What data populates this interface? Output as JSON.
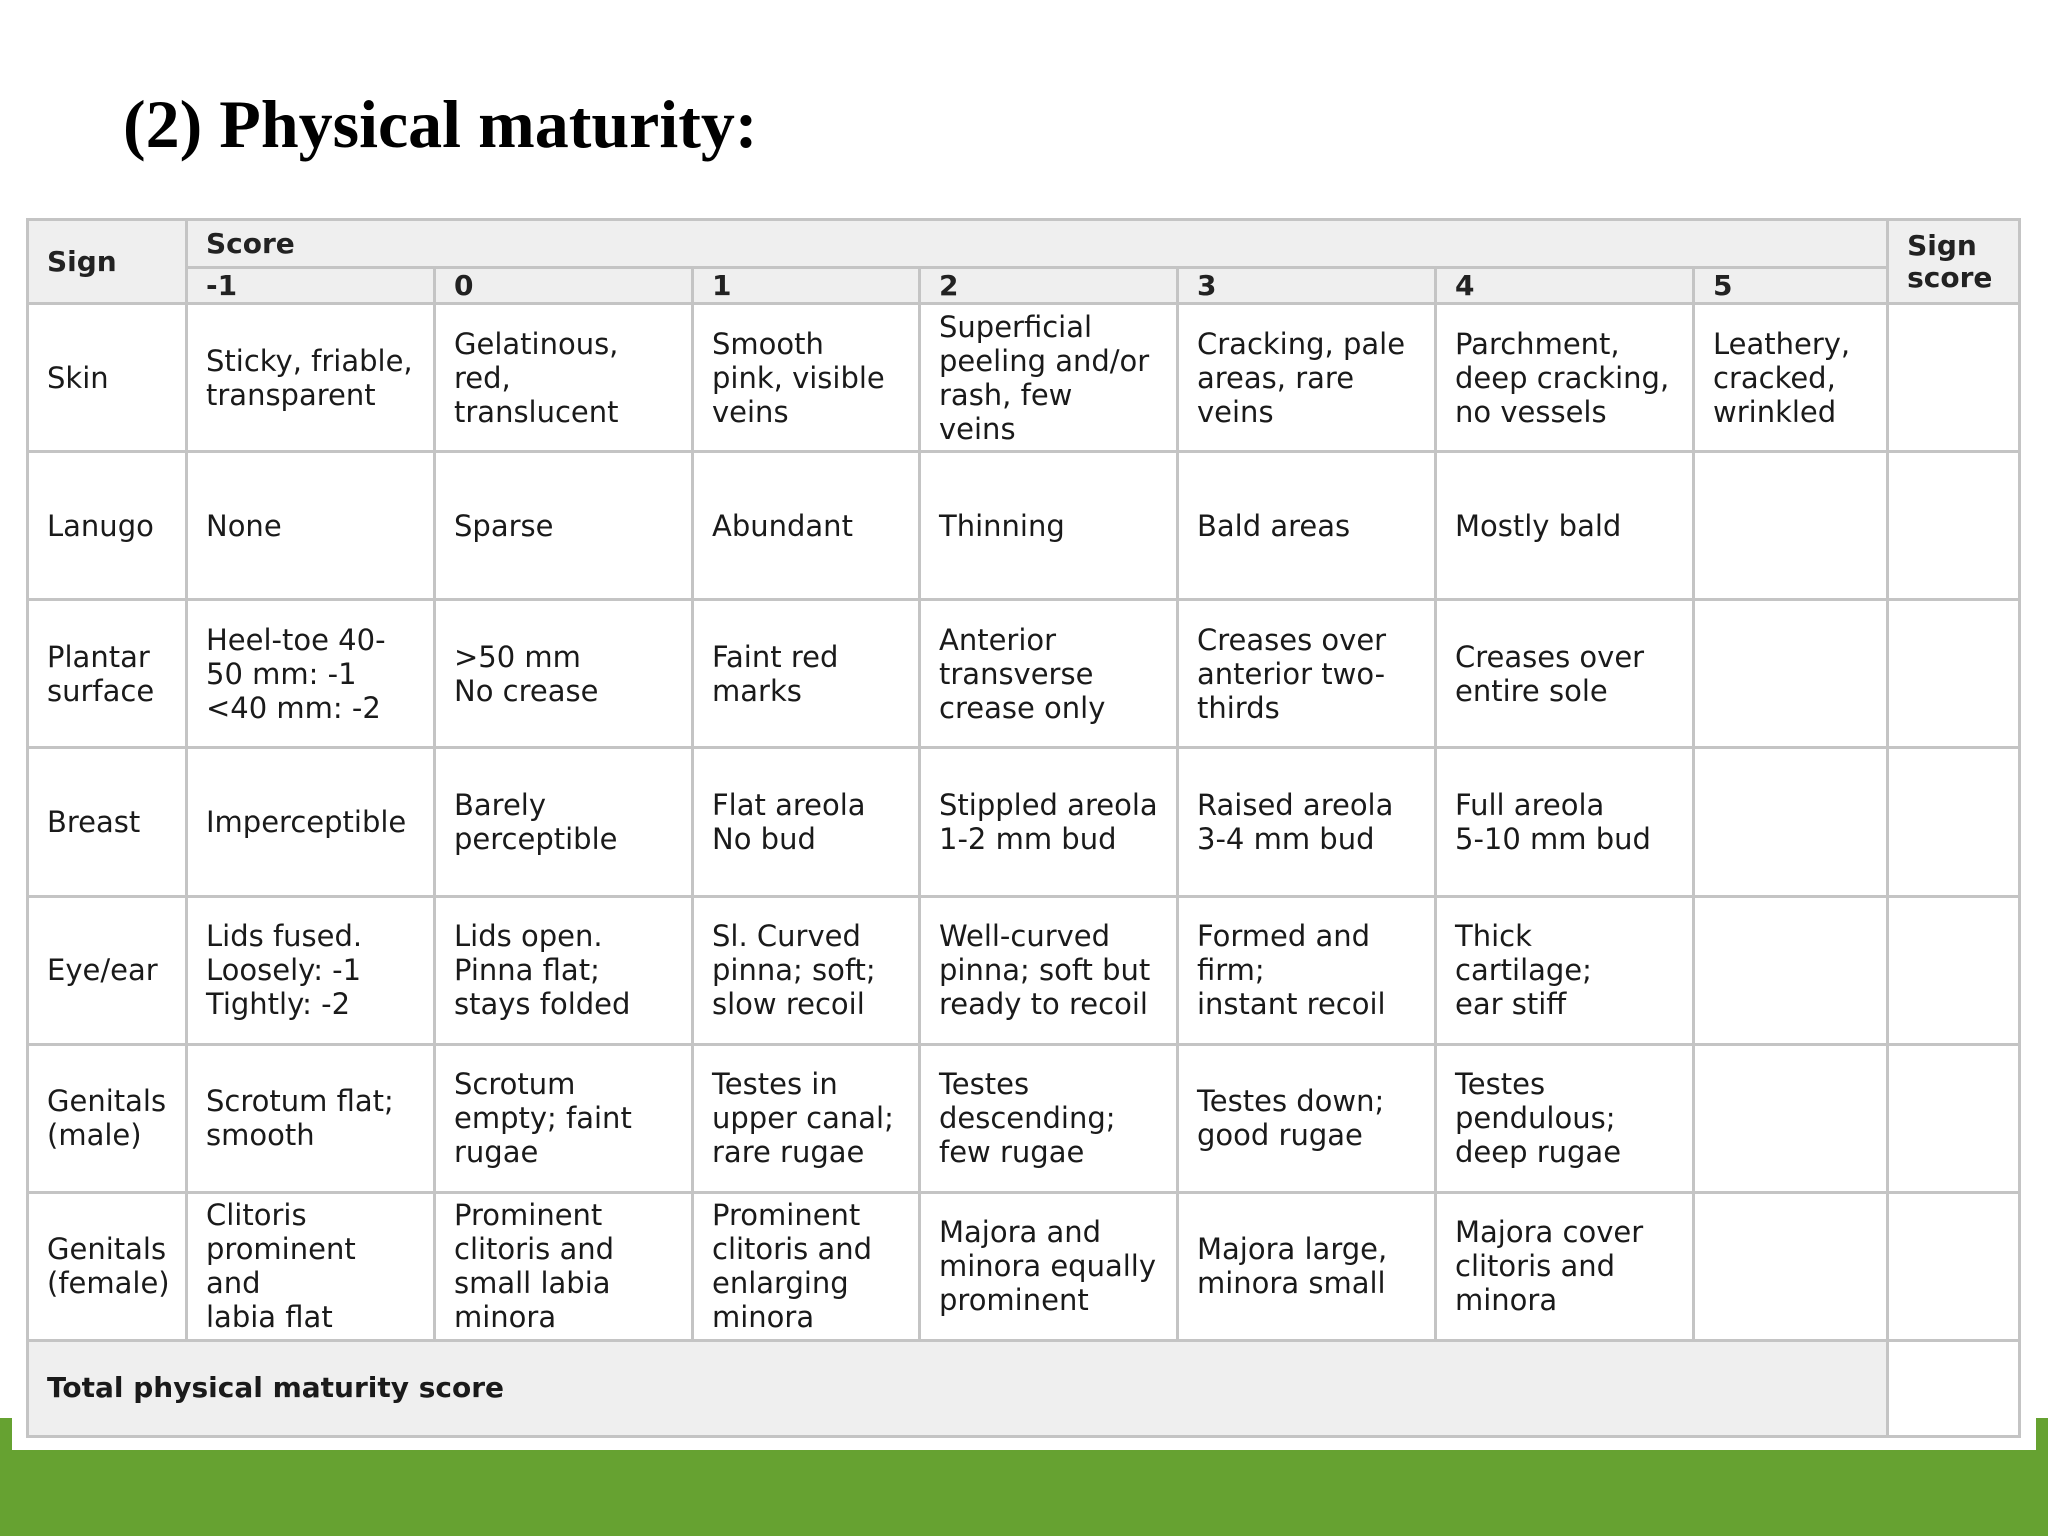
{
  "slide": {
    "title": "(2) Physical maturity:"
  },
  "table": {
    "sign_header": "Sign",
    "score_header": "Score",
    "sign_score_header": "Sign\nscore",
    "score_columns": [
      "-1",
      "0",
      "1",
      "2",
      "3",
      "4",
      "5"
    ],
    "rows": [
      {
        "sign": "Skin",
        "cells": [
          "Sticky, friable,\ntransparent",
          "Gelatinous,\nred,\ntranslucent",
          "Smooth\npink, visible\nveins",
          "Superficial\npeeling and/or\nrash, few veins",
          "Cracking, pale\nareas, rare\nveins",
          "Parchment,\ndeep cracking,\nno vessels",
          "Leathery,\ncracked,\nwrinkled"
        ]
      },
      {
        "sign": "Lanugo",
        "cells": [
          "None",
          "Sparse",
          "Abundant",
          "Thinning",
          "Bald areas",
          "Mostly bald",
          ""
        ]
      },
      {
        "sign": "Plantar\nsurface",
        "cells": [
          "Heel-toe 40-\n50 mm: -1\n<40 mm: -2",
          ">50 mm\nNo crease",
          "Faint red\nmarks",
          "Anterior\ntransverse\ncrease only",
          "Creases over\nanterior two-\nthirds",
          "Creases over\nentire sole",
          ""
        ]
      },
      {
        "sign": "Breast",
        "cells": [
          "Imperceptible",
          "Barely\nperceptible",
          "Flat areola\nNo bud",
          "Stippled areola\n1-2 mm bud",
          "Raised areola\n3-4 mm bud",
          "Full areola\n5-10 mm bud",
          ""
        ]
      },
      {
        "sign": "Eye/ear",
        "cells": [
          "Lids fused.\nLoosely: -1\nTightly: -2",
          "Lids open.\nPinna flat;\nstays folded",
          "Sl. Curved\npinna; soft;\nslow recoil",
          "Well-curved\npinna; soft but\nready to recoil",
          "Formed and\nfirm;\ninstant recoil",
          "Thick cartilage;\near stiff",
          ""
        ]
      },
      {
        "sign": "Genitals\n(male)",
        "cells": [
          "Scrotum flat;\nsmooth",
          "Scrotum\nempty; faint\nrugae",
          "Testes in\nupper canal;\nrare rugae",
          "Testes\ndescending;\nfew rugae",
          "Testes down;\ngood rugae",
          "Testes\npendulous;\ndeep rugae",
          ""
        ]
      },
      {
        "sign": "Genitals\n(female)",
        "cells": [
          "Clitoris\nprominent and\nlabia flat",
          "Prominent\nclitoris and\nsmall labia\nminora",
          "Prominent\nclitoris and\nenlarging\nminora",
          "Majora and\nminora equally\nprominent",
          "Majora large,\nminora small",
          "Majora cover\nclitoris and\nminora",
          ""
        ]
      }
    ],
    "total_label": "Total physical maturity score"
  },
  "colors": {
    "footer_green": "#66a231",
    "header_bg": "#efefef",
    "grid_line": "#c4c4c4"
  }
}
